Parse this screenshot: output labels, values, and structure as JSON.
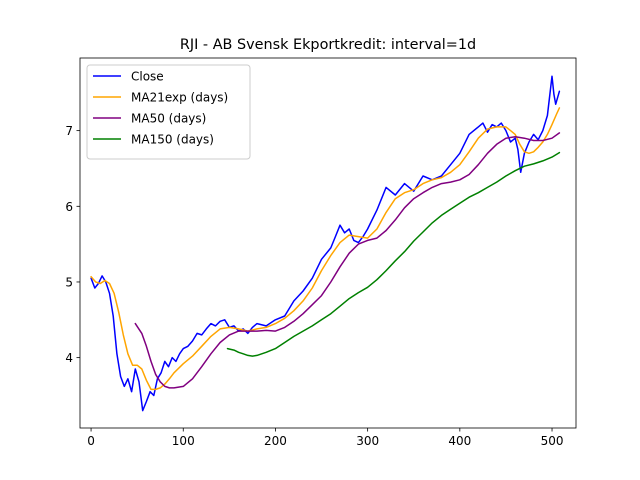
{
  "chart_data": {
    "type": "line",
    "title": "RJI - AB Svensk Ekportkredit: interval=1d",
    "xlabel": "",
    "ylabel": "",
    "xlim": [
      -12,
      526
    ],
    "ylim": [
      3.07,
      7.96
    ],
    "xticks": [
      0,
      100,
      200,
      300,
      400,
      500
    ],
    "yticks": [
      4,
      5,
      6,
      7
    ],
    "grid": false,
    "legend_position": "top-left",
    "series": [
      {
        "name": "Close",
        "color": "#0000ff",
        "x": [
          0,
          4,
          8,
          12,
          16,
          20,
          24,
          28,
          32,
          36,
          40,
          44,
          48,
          52,
          56,
          60,
          64,
          68,
          72,
          76,
          80,
          84,
          88,
          92,
          96,
          100,
          105,
          110,
          115,
          120,
          125,
          130,
          135,
          140,
          145,
          150,
          155,
          160,
          165,
          170,
          175,
          180,
          190,
          200,
          210,
          220,
          230,
          240,
          250,
          260,
          265,
          270,
          275,
          280,
          285,
          290,
          295,
          300,
          310,
          320,
          330,
          340,
          350,
          360,
          370,
          380,
          390,
          400,
          410,
          420,
          425,
          430,
          435,
          440,
          445,
          450,
          455,
          460,
          463,
          466,
          470,
          475,
          480,
          485,
          490,
          495,
          500,
          502,
          504,
          508
        ],
        "y": [
          5.05,
          4.92,
          4.98,
          5.08,
          5.0,
          4.85,
          4.55,
          4.05,
          3.75,
          3.62,
          3.72,
          3.55,
          3.85,
          3.68,
          3.3,
          3.42,
          3.55,
          3.5,
          3.72,
          3.8,
          3.95,
          3.88,
          4.0,
          3.95,
          4.05,
          4.12,
          4.15,
          4.22,
          4.32,
          4.3,
          4.38,
          4.45,
          4.42,
          4.48,
          4.5,
          4.4,
          4.42,
          4.35,
          4.38,
          4.32,
          4.4,
          4.45,
          4.42,
          4.5,
          4.55,
          4.75,
          4.88,
          5.05,
          5.3,
          5.45,
          5.6,
          5.75,
          5.65,
          5.7,
          5.55,
          5.52,
          5.6,
          5.7,
          5.95,
          6.25,
          6.15,
          6.3,
          6.2,
          6.4,
          6.35,
          6.4,
          6.55,
          6.7,
          6.95,
          7.05,
          7.1,
          6.98,
          7.08,
          7.05,
          7.1,
          7.0,
          6.85,
          6.9,
          6.75,
          6.45,
          6.7,
          6.85,
          6.95,
          6.88,
          7.0,
          7.2,
          7.72,
          7.48,
          7.35,
          7.52
        ]
      },
      {
        "name": "MA21exp (days)",
        "color": "#ffa500",
        "x": [
          0,
          5,
          10,
          15,
          20,
          25,
          30,
          35,
          40,
          45,
          50,
          55,
          60,
          65,
          70,
          75,
          80,
          85,
          90,
          100,
          110,
          120,
          130,
          140,
          150,
          160,
          170,
          180,
          190,
          200,
          210,
          220,
          230,
          240,
          250,
          260,
          270,
          280,
          290,
          300,
          310,
          320,
          330,
          340,
          350,
          360,
          370,
          380,
          390,
          400,
          410,
          420,
          430,
          440,
          450,
          455,
          460,
          465,
          470,
          475,
          480,
          485,
          490,
          495,
          500,
          505,
          508
        ],
        "y": [
          5.07,
          5.0,
          4.98,
          5.02,
          4.98,
          4.85,
          4.6,
          4.3,
          4.05,
          3.9,
          3.9,
          3.85,
          3.7,
          3.58,
          3.58,
          3.6,
          3.65,
          3.72,
          3.8,
          3.92,
          4.02,
          4.15,
          4.28,
          4.38,
          4.4,
          4.38,
          4.35,
          4.38,
          4.4,
          4.45,
          4.52,
          4.62,
          4.75,
          4.92,
          5.15,
          5.35,
          5.52,
          5.62,
          5.6,
          5.58,
          5.7,
          5.92,
          6.1,
          6.18,
          6.22,
          6.3,
          6.35,
          6.38,
          6.45,
          6.55,
          6.72,
          6.9,
          7.02,
          7.05,
          7.05,
          7.0,
          6.95,
          6.82,
          6.72,
          6.7,
          6.72,
          6.78,
          6.85,
          6.95,
          7.08,
          7.22,
          7.3
        ]
      },
      {
        "name": "MA50 (days)",
        "color": "#800080",
        "x": [
          48,
          55,
          60,
          65,
          70,
          75,
          80,
          85,
          90,
          100,
          110,
          120,
          130,
          140,
          150,
          160,
          170,
          180,
          190,
          200,
          210,
          220,
          230,
          240,
          250,
          260,
          270,
          280,
          290,
          300,
          310,
          320,
          330,
          340,
          350,
          360,
          370,
          380,
          390,
          400,
          410,
          420,
          430,
          440,
          450,
          460,
          470,
          480,
          490,
          500,
          508
        ],
        "y": [
          4.45,
          4.32,
          4.15,
          3.95,
          3.78,
          3.68,
          3.62,
          3.6,
          3.6,
          3.62,
          3.72,
          3.88,
          4.05,
          4.2,
          4.3,
          4.35,
          4.35,
          4.35,
          4.36,
          4.35,
          4.4,
          4.48,
          4.58,
          4.7,
          4.82,
          5.0,
          5.2,
          5.38,
          5.5,
          5.55,
          5.58,
          5.68,
          5.82,
          5.98,
          6.1,
          6.18,
          6.25,
          6.3,
          6.32,
          6.35,
          6.42,
          6.55,
          6.7,
          6.82,
          6.9,
          6.92,
          6.9,
          6.87,
          6.87,
          6.9,
          6.97
        ]
      },
      {
        "name": "MA150 (days)",
        "color": "#008000",
        "x": [
          148,
          155,
          160,
          165,
          170,
          175,
          180,
          190,
          200,
          210,
          220,
          230,
          240,
          250,
          260,
          270,
          280,
          290,
          300,
          310,
          320,
          330,
          340,
          350,
          360,
          370,
          380,
          390,
          400,
          410,
          420,
          430,
          440,
          450,
          460,
          470,
          480,
          490,
          500,
          508
        ],
        "y": [
          4.12,
          4.1,
          4.07,
          4.05,
          4.03,
          4.02,
          4.03,
          4.07,
          4.12,
          4.2,
          4.28,
          4.35,
          4.42,
          4.5,
          4.58,
          4.68,
          4.78,
          4.86,
          4.93,
          5.03,
          5.15,
          5.28,
          5.4,
          5.54,
          5.66,
          5.78,
          5.88,
          5.96,
          6.04,
          6.12,
          6.18,
          6.25,
          6.32,
          6.4,
          6.47,
          6.53,
          6.56,
          6.6,
          6.65,
          6.71
        ]
      }
    ]
  }
}
